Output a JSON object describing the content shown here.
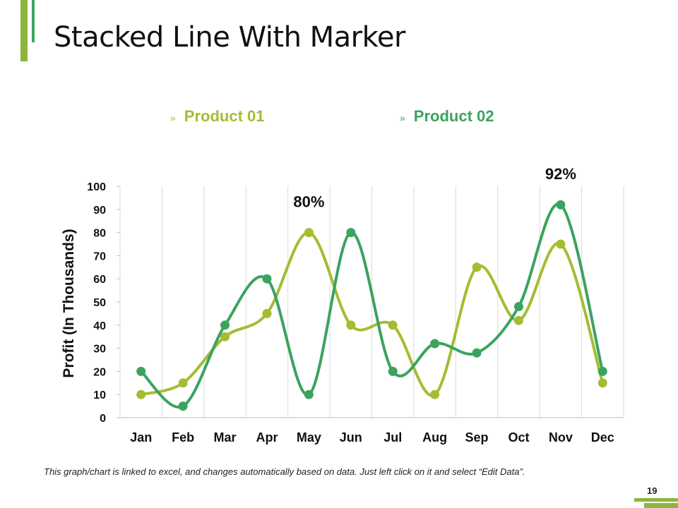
{
  "slide": {
    "title": "Stacked Line With Marker",
    "footnote": "This graph/chart is linked to excel, and changes automatically based on data. Just left click on it and select “Edit Data”.",
    "page_number": "19",
    "legend_marker": "»"
  },
  "colors": {
    "product_01": "#a3bd32",
    "product_02": "#3ba35e",
    "accent_light": "#8cb63c",
    "accent_dark": "#3ca55c",
    "grid": "#d9d9d9",
    "text": "#111111"
  },
  "chart_data": {
    "type": "line",
    "title": "",
    "xlabel": "",
    "ylabel": "Profit (In Thousands)",
    "categories": [
      "Jan",
      "Feb",
      "Mar",
      "Apr",
      "May",
      "Jun",
      "Jul",
      "Aug",
      "Sep",
      "Oct",
      "Nov",
      "Dec"
    ],
    "ylim": [
      0,
      100
    ],
    "yticks": [
      0,
      10,
      20,
      30,
      40,
      50,
      60,
      70,
      80,
      90,
      100
    ],
    "grid": "vertical",
    "legend_position": "top",
    "smooth": true,
    "markers": true,
    "series": [
      {
        "name": "Product 01",
        "color": "#a3bd32",
        "values": [
          10,
          15,
          35,
          45,
          80,
          40,
          40,
          10,
          65,
          42,
          75,
          15
        ]
      },
      {
        "name": "Product 02",
        "color": "#3ba35e",
        "values": [
          20,
          5,
          40,
          60,
          10,
          80,
          20,
          32,
          28,
          48,
          92,
          20
        ]
      }
    ],
    "annotations": [
      {
        "text": "80%",
        "category": "May",
        "value": 80
      },
      {
        "text": "92%",
        "category": "Nov",
        "value": 92
      }
    ]
  }
}
